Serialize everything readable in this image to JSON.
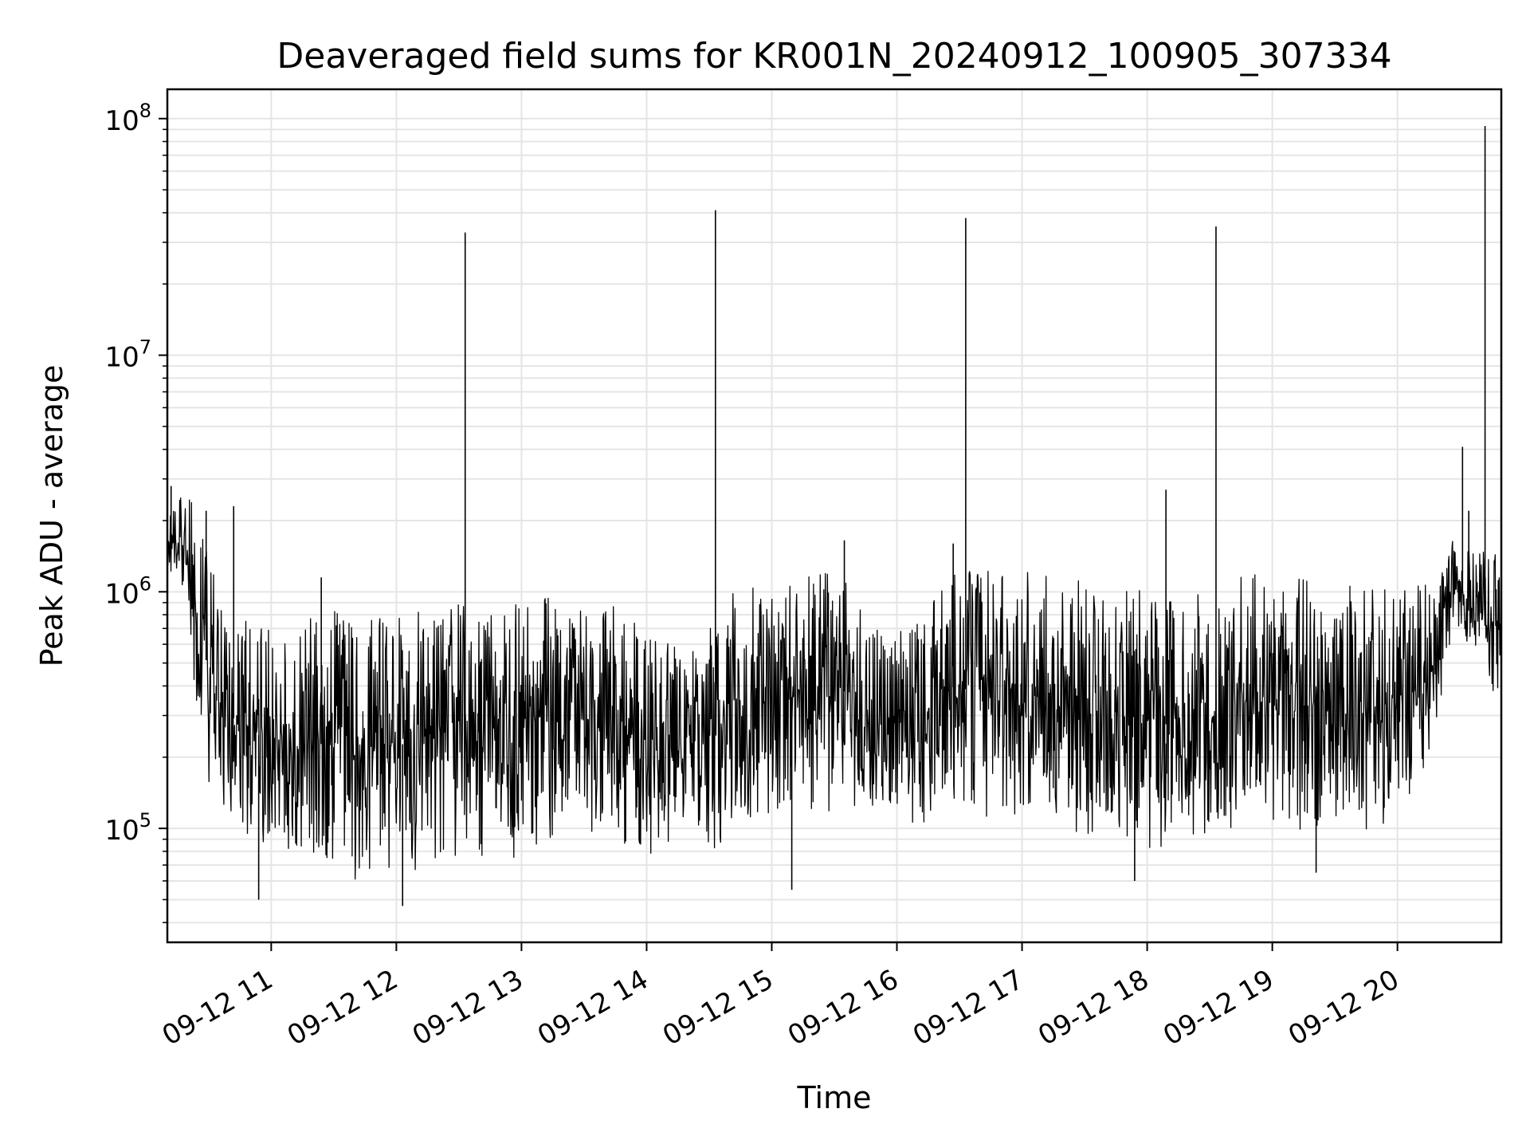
{
  "chart_data": {
    "type": "line",
    "title": "Deaveraged field sums for KR001N_20240912_100905_307334",
    "xlabel": "Time",
    "ylabel": "Peak ADU - average",
    "yscale": "log",
    "ylim": [
      33000,
      133000000
    ],
    "xlim_hours": [
      10.17,
      20.83
    ],
    "grid": true,
    "colors": {
      "line": "#000000",
      "grid": "#e5e5e5",
      "axes": "#000000"
    },
    "x_ticks": [
      {
        "hour": 11,
        "label": "09-12 11"
      },
      {
        "hour": 12,
        "label": "09-12 12"
      },
      {
        "hour": 13,
        "label": "09-12 13"
      },
      {
        "hour": 14,
        "label": "09-12 14"
      },
      {
        "hour": 15,
        "label": "09-12 15"
      },
      {
        "hour": 16,
        "label": "09-12 16"
      },
      {
        "hour": 17,
        "label": "09-12 17"
      },
      {
        "hour": 18,
        "label": "09-12 18"
      },
      {
        "hour": 19,
        "label": "09-12 19"
      },
      {
        "hour": 20,
        "label": "09-12 20"
      }
    ],
    "y_ticks": [
      {
        "value": 100000,
        "base": "10",
        "exp": "5"
      },
      {
        "value": 1000000,
        "base": "10",
        "exp": "6"
      },
      {
        "value": 10000000,
        "base": "10",
        "exp": "7"
      },
      {
        "value": 100000000,
        "base": "10",
        "exp": "8"
      }
    ],
    "series": [
      {
        "envelope": [
          {
            "hour": 10.17,
            "low": 1100000,
            "high": 2000000
          },
          {
            "hour": 10.3,
            "low": 1000000,
            "high": 2800000
          },
          {
            "hour": 10.45,
            "low": 150000,
            "high": 2200000
          },
          {
            "hour": 10.6,
            "low": 120000,
            "high": 900000
          },
          {
            "hour": 10.8,
            "low": 90000,
            "high": 750000
          },
          {
            "hour": 11.0,
            "low": 80000,
            "high": 700000
          },
          {
            "hour": 11.3,
            "low": 65000,
            "high": 800000
          },
          {
            "hour": 11.6,
            "low": 60000,
            "high": 850000
          },
          {
            "hour": 11.9,
            "low": 60000,
            "high": 800000
          },
          {
            "hour": 12.2,
            "low": 65000,
            "high": 850000
          },
          {
            "hour": 12.5,
            "low": 65000,
            "high": 900000
          },
          {
            "hour": 12.8,
            "low": 70000,
            "high": 950000
          },
          {
            "hour": 13.1,
            "low": 80000,
            "high": 950000
          },
          {
            "hour": 13.4,
            "low": 85000,
            "high": 950000
          },
          {
            "hour": 13.7,
            "low": 90000,
            "high": 950000
          },
          {
            "hour": 13.95,
            "low": 70000,
            "high": 700000
          },
          {
            "hour": 14.2,
            "low": 75000,
            "high": 650000
          },
          {
            "hour": 14.5,
            "low": 80000,
            "high": 700000
          },
          {
            "hour": 14.7,
            "low": 90000,
            "high": 1100000
          },
          {
            "hour": 15.0,
            "low": 100000,
            "high": 1200000
          },
          {
            "hour": 15.3,
            "low": 110000,
            "high": 1250000
          },
          {
            "hour": 15.6,
            "low": 120000,
            "high": 1200000
          },
          {
            "hour": 15.9,
            "low": 100000,
            "high": 700000
          },
          {
            "hour": 16.2,
            "low": 95000,
            "high": 750000
          },
          {
            "hour": 16.45,
            "low": 120000,
            "high": 1300000
          },
          {
            "hour": 16.8,
            "low": 110000,
            "high": 1250000
          },
          {
            "hour": 17.2,
            "low": 100000,
            "high": 1200000
          },
          {
            "hour": 17.6,
            "low": 90000,
            "high": 1100000
          },
          {
            "hour": 18.0,
            "low": 80000,
            "high": 1000000
          },
          {
            "hour": 18.3,
            "low": 80000,
            "high": 900000
          },
          {
            "hour": 18.6,
            "low": 90000,
            "high": 1200000
          },
          {
            "hour": 19.0,
            "low": 95000,
            "high": 1200000
          },
          {
            "hour": 19.4,
            "low": 95000,
            "high": 1100000
          },
          {
            "hour": 19.8,
            "low": 95000,
            "high": 1150000
          },
          {
            "hour": 20.1,
            "low": 100000,
            "high": 1200000
          },
          {
            "hour": 20.3,
            "low": 250000,
            "high": 1100000
          },
          {
            "hour": 20.45,
            "low": 700000,
            "high": 1700000
          },
          {
            "hour": 20.65,
            "low": 500000,
            "high": 1500000
          },
          {
            "hour": 20.83,
            "low": 300000,
            "high": 1500000
          }
        ],
        "spikes": [
          {
            "hour": 10.2,
            "value": 2800000
          },
          {
            "hour": 10.48,
            "value": 2200000
          },
          {
            "hour": 10.7,
            "value": 2300000
          },
          {
            "hour": 10.9,
            "value": 50000
          },
          {
            "hour": 11.4,
            "value": 1150000
          },
          {
            "hour": 12.05,
            "value": 47000
          },
          {
            "hour": 12.55,
            "value": 33000000
          },
          {
            "hour": 14.55,
            "value": 41000000
          },
          {
            "hour": 15.16,
            "value": 55000
          },
          {
            "hour": 15.58,
            "value": 1650000
          },
          {
            "hour": 16.55,
            "value": 38000000
          },
          {
            "hour": 16.45,
            "value": 1600000
          },
          {
            "hour": 17.9,
            "value": 60000
          },
          {
            "hour": 18.15,
            "value": 2700000
          },
          {
            "hour": 18.55,
            "value": 35000000
          },
          {
            "hour": 19.35,
            "value": 65000
          },
          {
            "hour": 20.52,
            "value": 4100000
          },
          {
            "hour": 20.57,
            "value": 2200000
          },
          {
            "hour": 20.7,
            "value": 93000000
          }
        ]
      }
    ]
  }
}
